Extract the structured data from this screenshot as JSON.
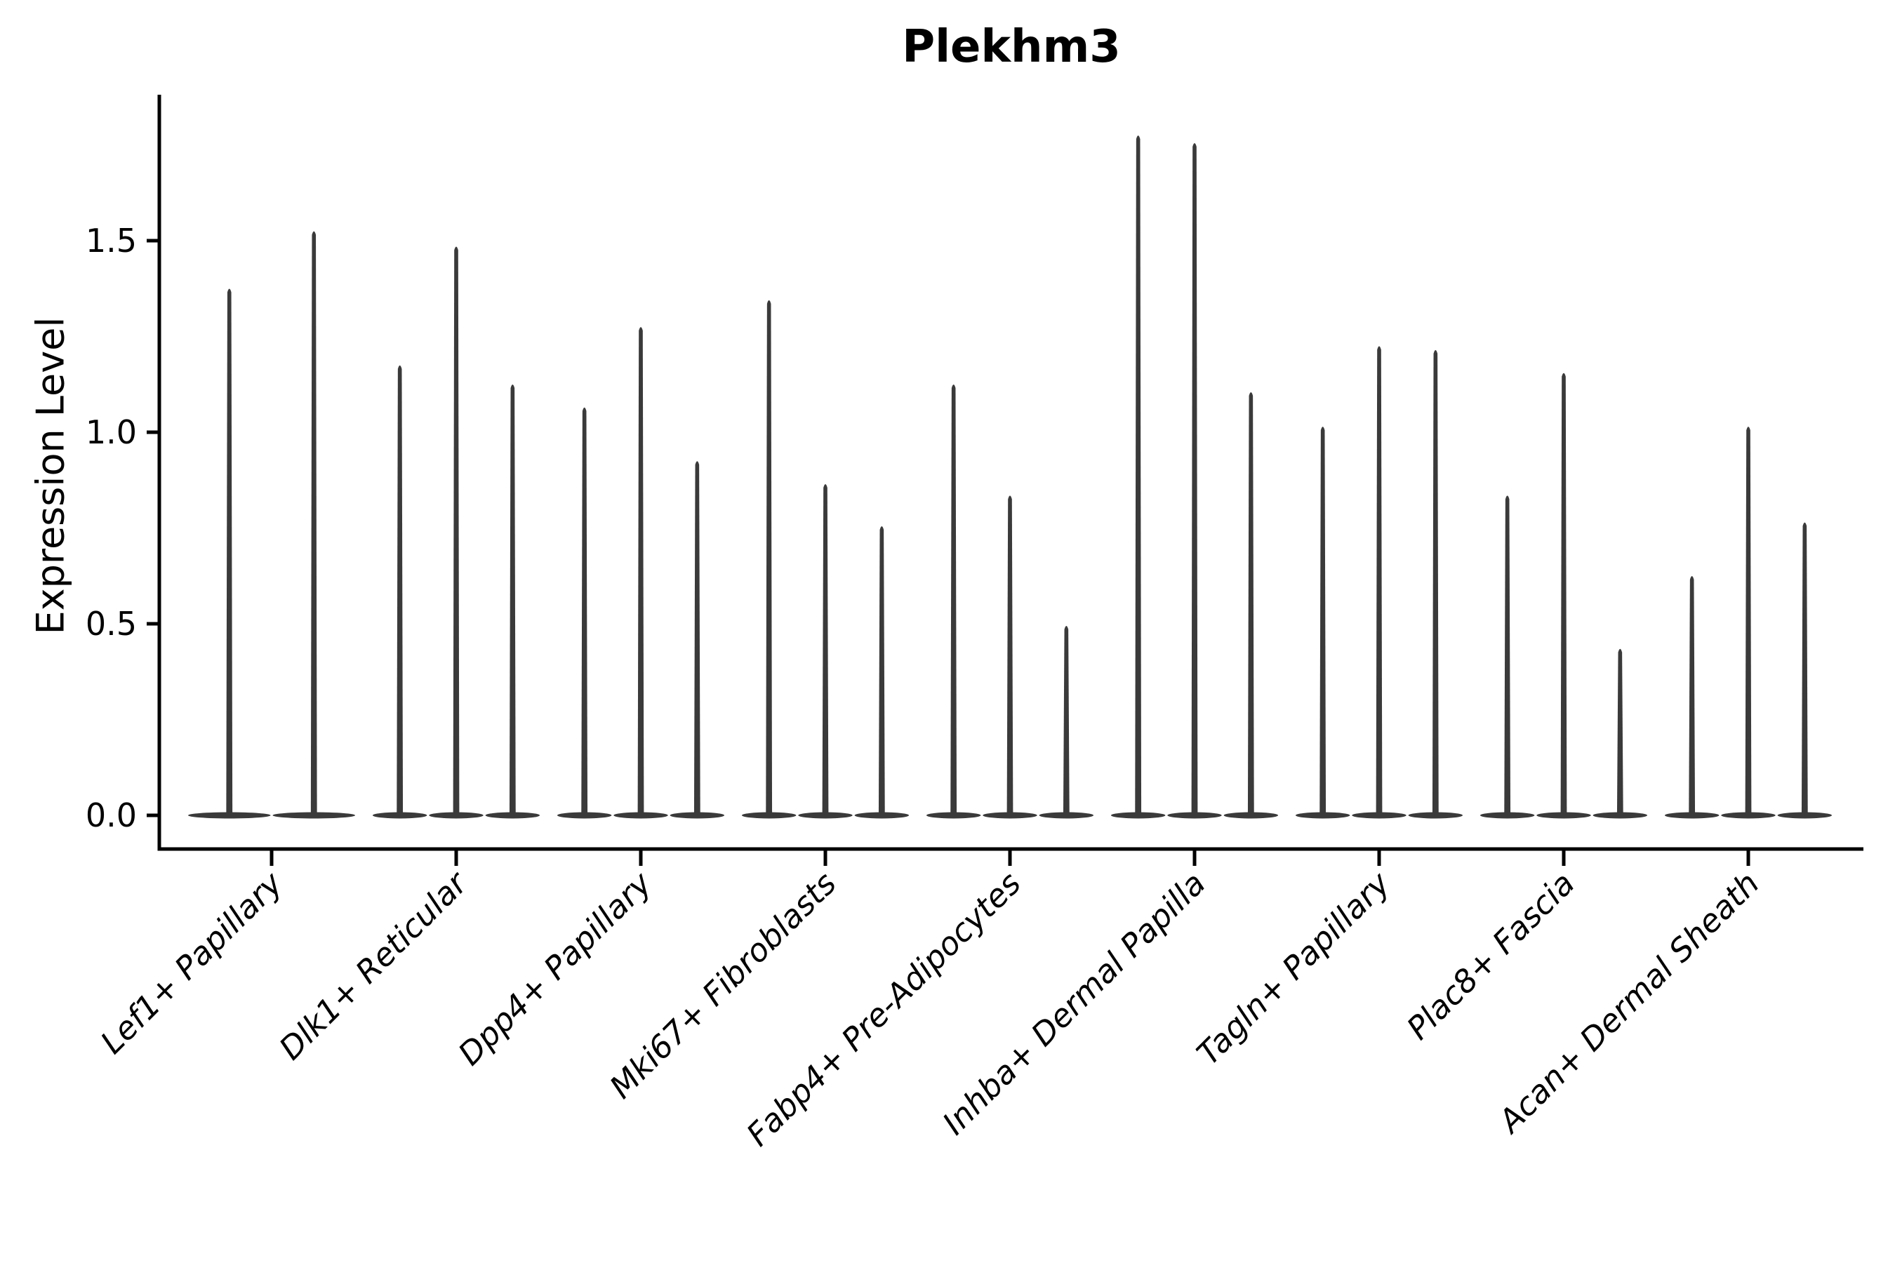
{
  "chart_data": {
    "type": "violin",
    "title": "Plekhm3",
    "xlabel": "",
    "ylabel": "Expression Level",
    "ylim": [
      0,
      1.88
    ],
    "y_ticks": [
      0.0,
      0.5,
      1.0,
      1.5
    ],
    "grid": false,
    "legend": "none",
    "categories": [
      "Lef1+ Papillary",
      "Dlk1+ Reticular",
      "Dpp4+ Papillary",
      "Mki67+ Fibroblasts",
      "Fabp4+ Pre-Adipocytes",
      "Inhba+ Dermal Papilla",
      "Tagln+ Papillary",
      "Plac8+ Fascia",
      "Acan+ Dermal Sheath"
    ],
    "series": [
      {
        "category": "Lef1+ Papillary",
        "violin_max_values": [
          1.38,
          1.53
        ]
      },
      {
        "category": "Dlk1+ Reticular",
        "violin_max_values": [
          1.18,
          1.49,
          1.13
        ]
      },
      {
        "category": "Dpp4+ Papillary",
        "violin_max_values": [
          1.07,
          1.28,
          0.93
        ]
      },
      {
        "category": "Mki67+ Fibroblasts",
        "violin_max_values": [
          1.35,
          0.87,
          0.76
        ]
      },
      {
        "category": "Fabp4+ Pre-Adipocytes",
        "violin_max_values": [
          1.13,
          0.84,
          0.5
        ]
      },
      {
        "category": "Inhba+ Dermal Papilla",
        "violin_max_values": [
          1.78,
          1.76,
          1.11
        ]
      },
      {
        "category": "Tagln+ Papillary",
        "violin_max_values": [
          1.02,
          1.23,
          1.22
        ]
      },
      {
        "category": "Plac8+ Fascia",
        "violin_max_values": [
          0.84,
          1.16,
          0.44
        ]
      },
      {
        "category": "Acan+ Dermal Sheath",
        "violin_max_values": [
          0.63,
          1.02,
          0.77
        ]
      }
    ],
    "style": {
      "violin_color": "#3a3a3a",
      "axis_color": "#000000",
      "text_color": "#000000",
      "violin_shape": "flat-base-with-thin-spike-to-max",
      "x_label_rotation_deg": 45,
      "x_label_style": "italic"
    }
  }
}
